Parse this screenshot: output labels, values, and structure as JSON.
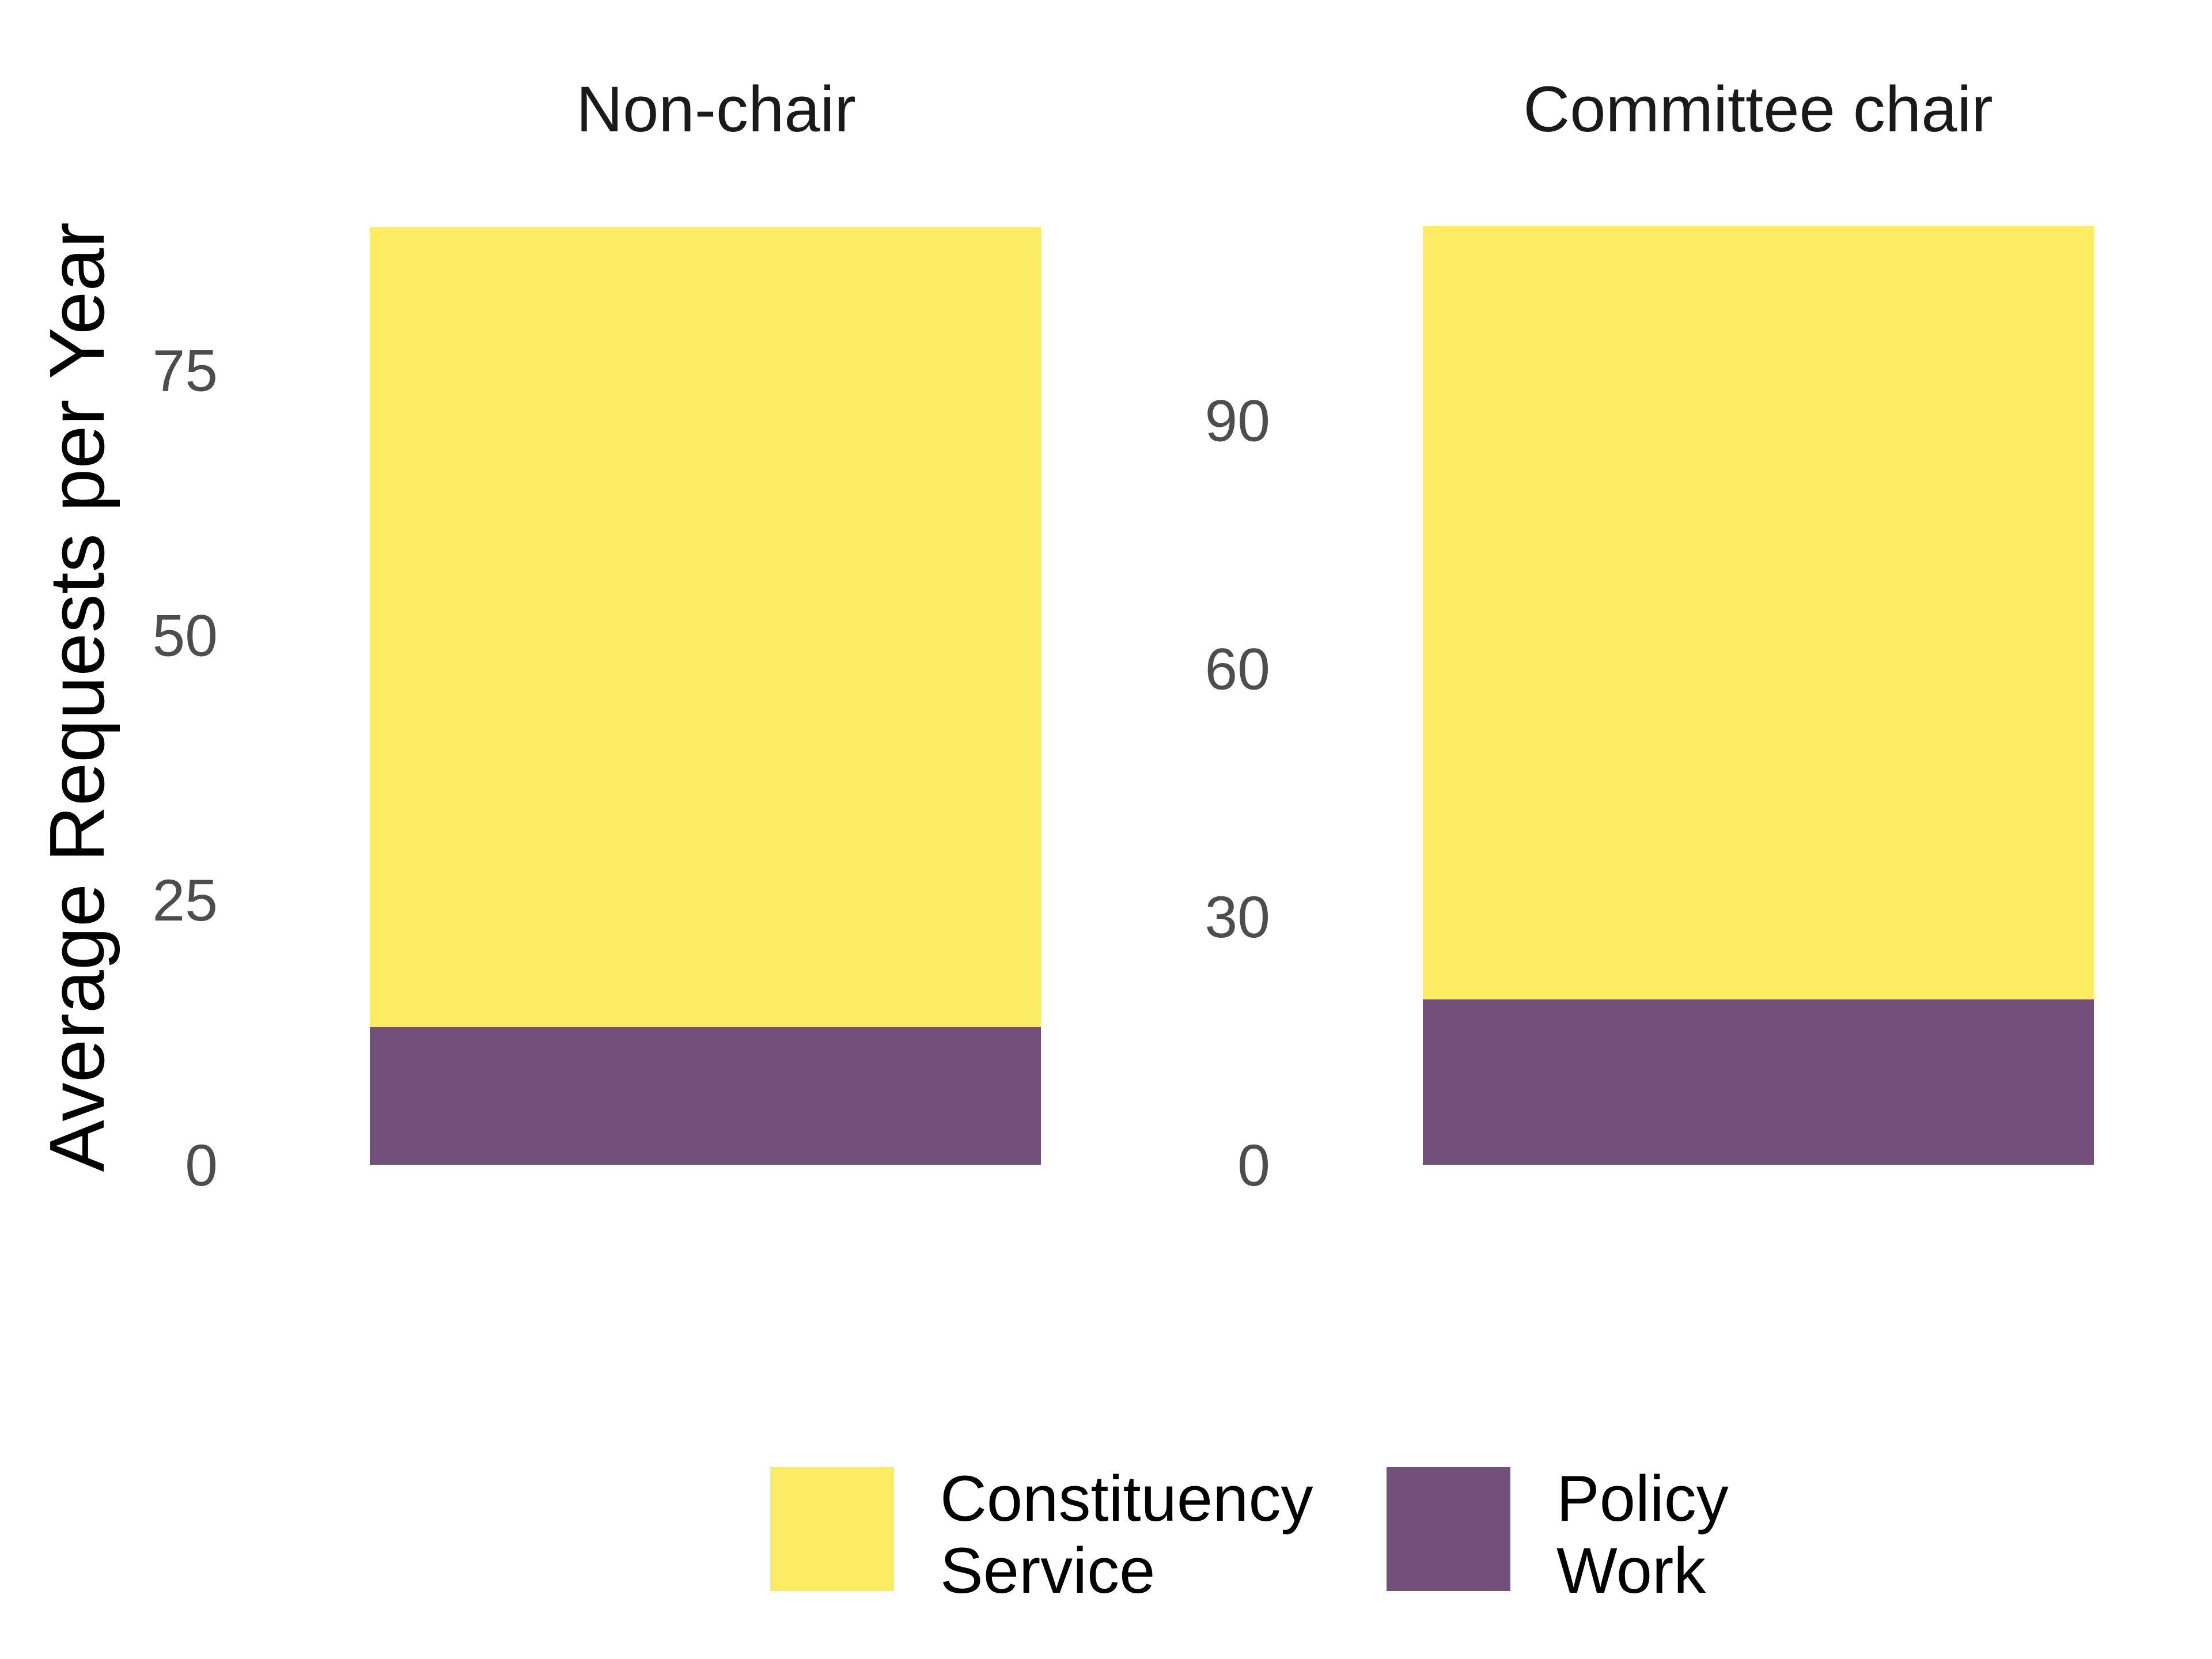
{
  "chart_data": {
    "type": "bar",
    "stacked": true,
    "ylabel": "Average Requests per Year",
    "xlabel": "",
    "legend": {
      "position": "bottom"
    },
    "colors": {
      "Constituency Service": "#fcec64",
      "Policy Work": "#734f7b"
    },
    "panels": [
      {
        "title": "Non-chair",
        "ylim": [
          0,
          89
        ],
        "yticks": [
          0,
          25,
          50,
          75
        ],
        "segments": [
          {
            "series": "Policy Work",
            "value": 13
          },
          {
            "series": "Constituency Service",
            "value": 75.5
          }
        ]
      },
      {
        "title": "Committee chair",
        "ylim": [
          0,
          114
        ],
        "yticks": [
          0,
          30,
          60,
          90
        ],
        "segments": [
          {
            "series": "Policy Work",
            "value": 20
          },
          {
            "series": "Constituency Service",
            "value": 93.5
          }
        ]
      }
    ],
    "series": [
      {
        "name": "Constituency Service",
        "lines": [
          "Constituency",
          "Service"
        ]
      },
      {
        "name": "Policy Work",
        "lines": [
          "Policy",
          "Work"
        ]
      }
    ]
  }
}
